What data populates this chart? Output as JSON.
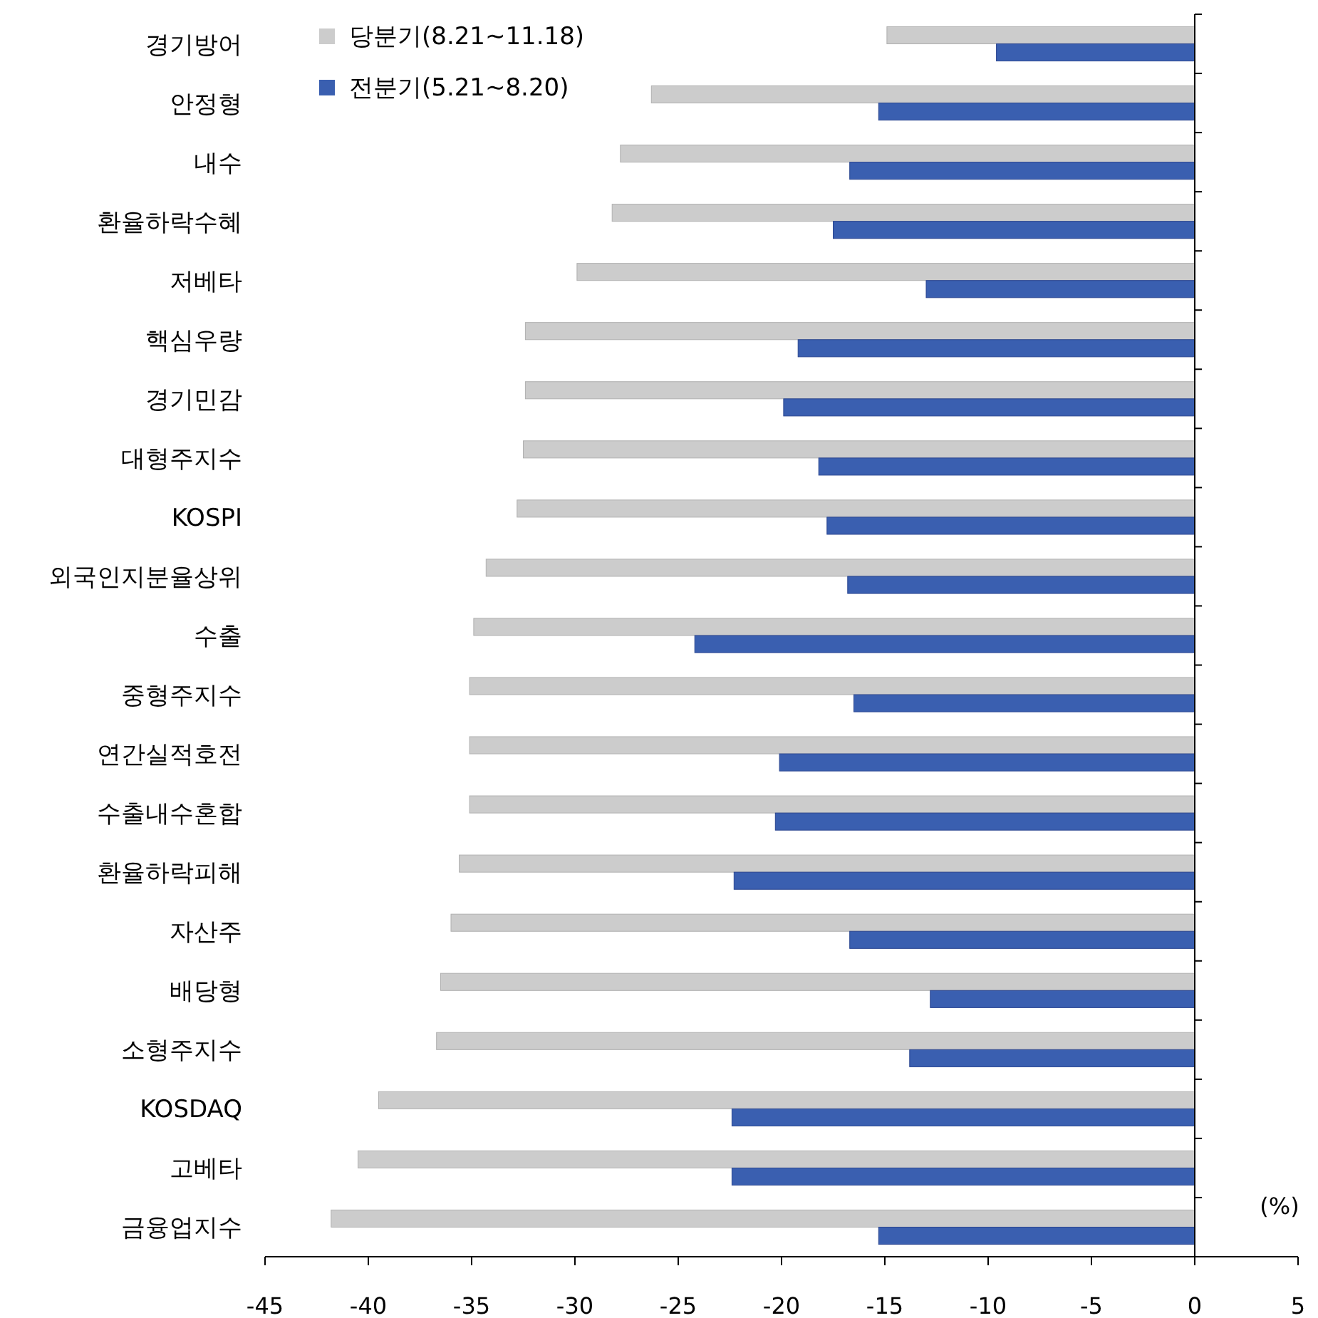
{
  "chart_data": {
    "type": "bar",
    "orientation": "horizontal",
    "categories": [
      "경기방어",
      "안정형",
      "내수",
      "환율하락수혜",
      "저베타",
      "핵심우량",
      "경기민감",
      "대형주지수",
      "KOSPI",
      "외국인지분율상위",
      "수출",
      "중형주지수",
      "연간실적호전",
      "수출내수혼합",
      "환율하락피해",
      "자산주",
      "배당형",
      "소형주지수",
      "KOSDAQ",
      "고베타",
      "금융업지수"
    ],
    "series": [
      {
        "name": "당분기(8.21~11.18)",
        "color": "#cccccc",
        "values": [
          -14.9,
          -26.3,
          -27.8,
          -28.2,
          -29.9,
          -32.4,
          -32.4,
          -32.5,
          -32.8,
          -34.3,
          -34.9,
          -35.1,
          -35.1,
          -35.1,
          -35.6,
          -36.0,
          -36.5,
          -36.7,
          -39.5,
          -40.5,
          -41.8
        ]
      },
      {
        "name": "전분기(5.21~8.20)",
        "color": "#3a5fb0",
        "values": [
          -9.6,
          -15.3,
          -16.7,
          -17.5,
          -13.0,
          -19.2,
          -19.9,
          -18.2,
          -17.8,
          -16.8,
          -24.2,
          -16.5,
          -20.1,
          -20.3,
          -22.3,
          -16.7,
          -12.8,
          -13.8,
          -22.4,
          -22.4,
          -15.3
        ]
      }
    ],
    "xlim": [
      -45,
      5
    ],
    "xticks": [
      -45,
      -40,
      -35,
      -30,
      -25,
      -20,
      -15,
      -10,
      -5,
      0,
      5
    ],
    "annotations": [
      "(%)"
    ],
    "legend": "top left"
  }
}
